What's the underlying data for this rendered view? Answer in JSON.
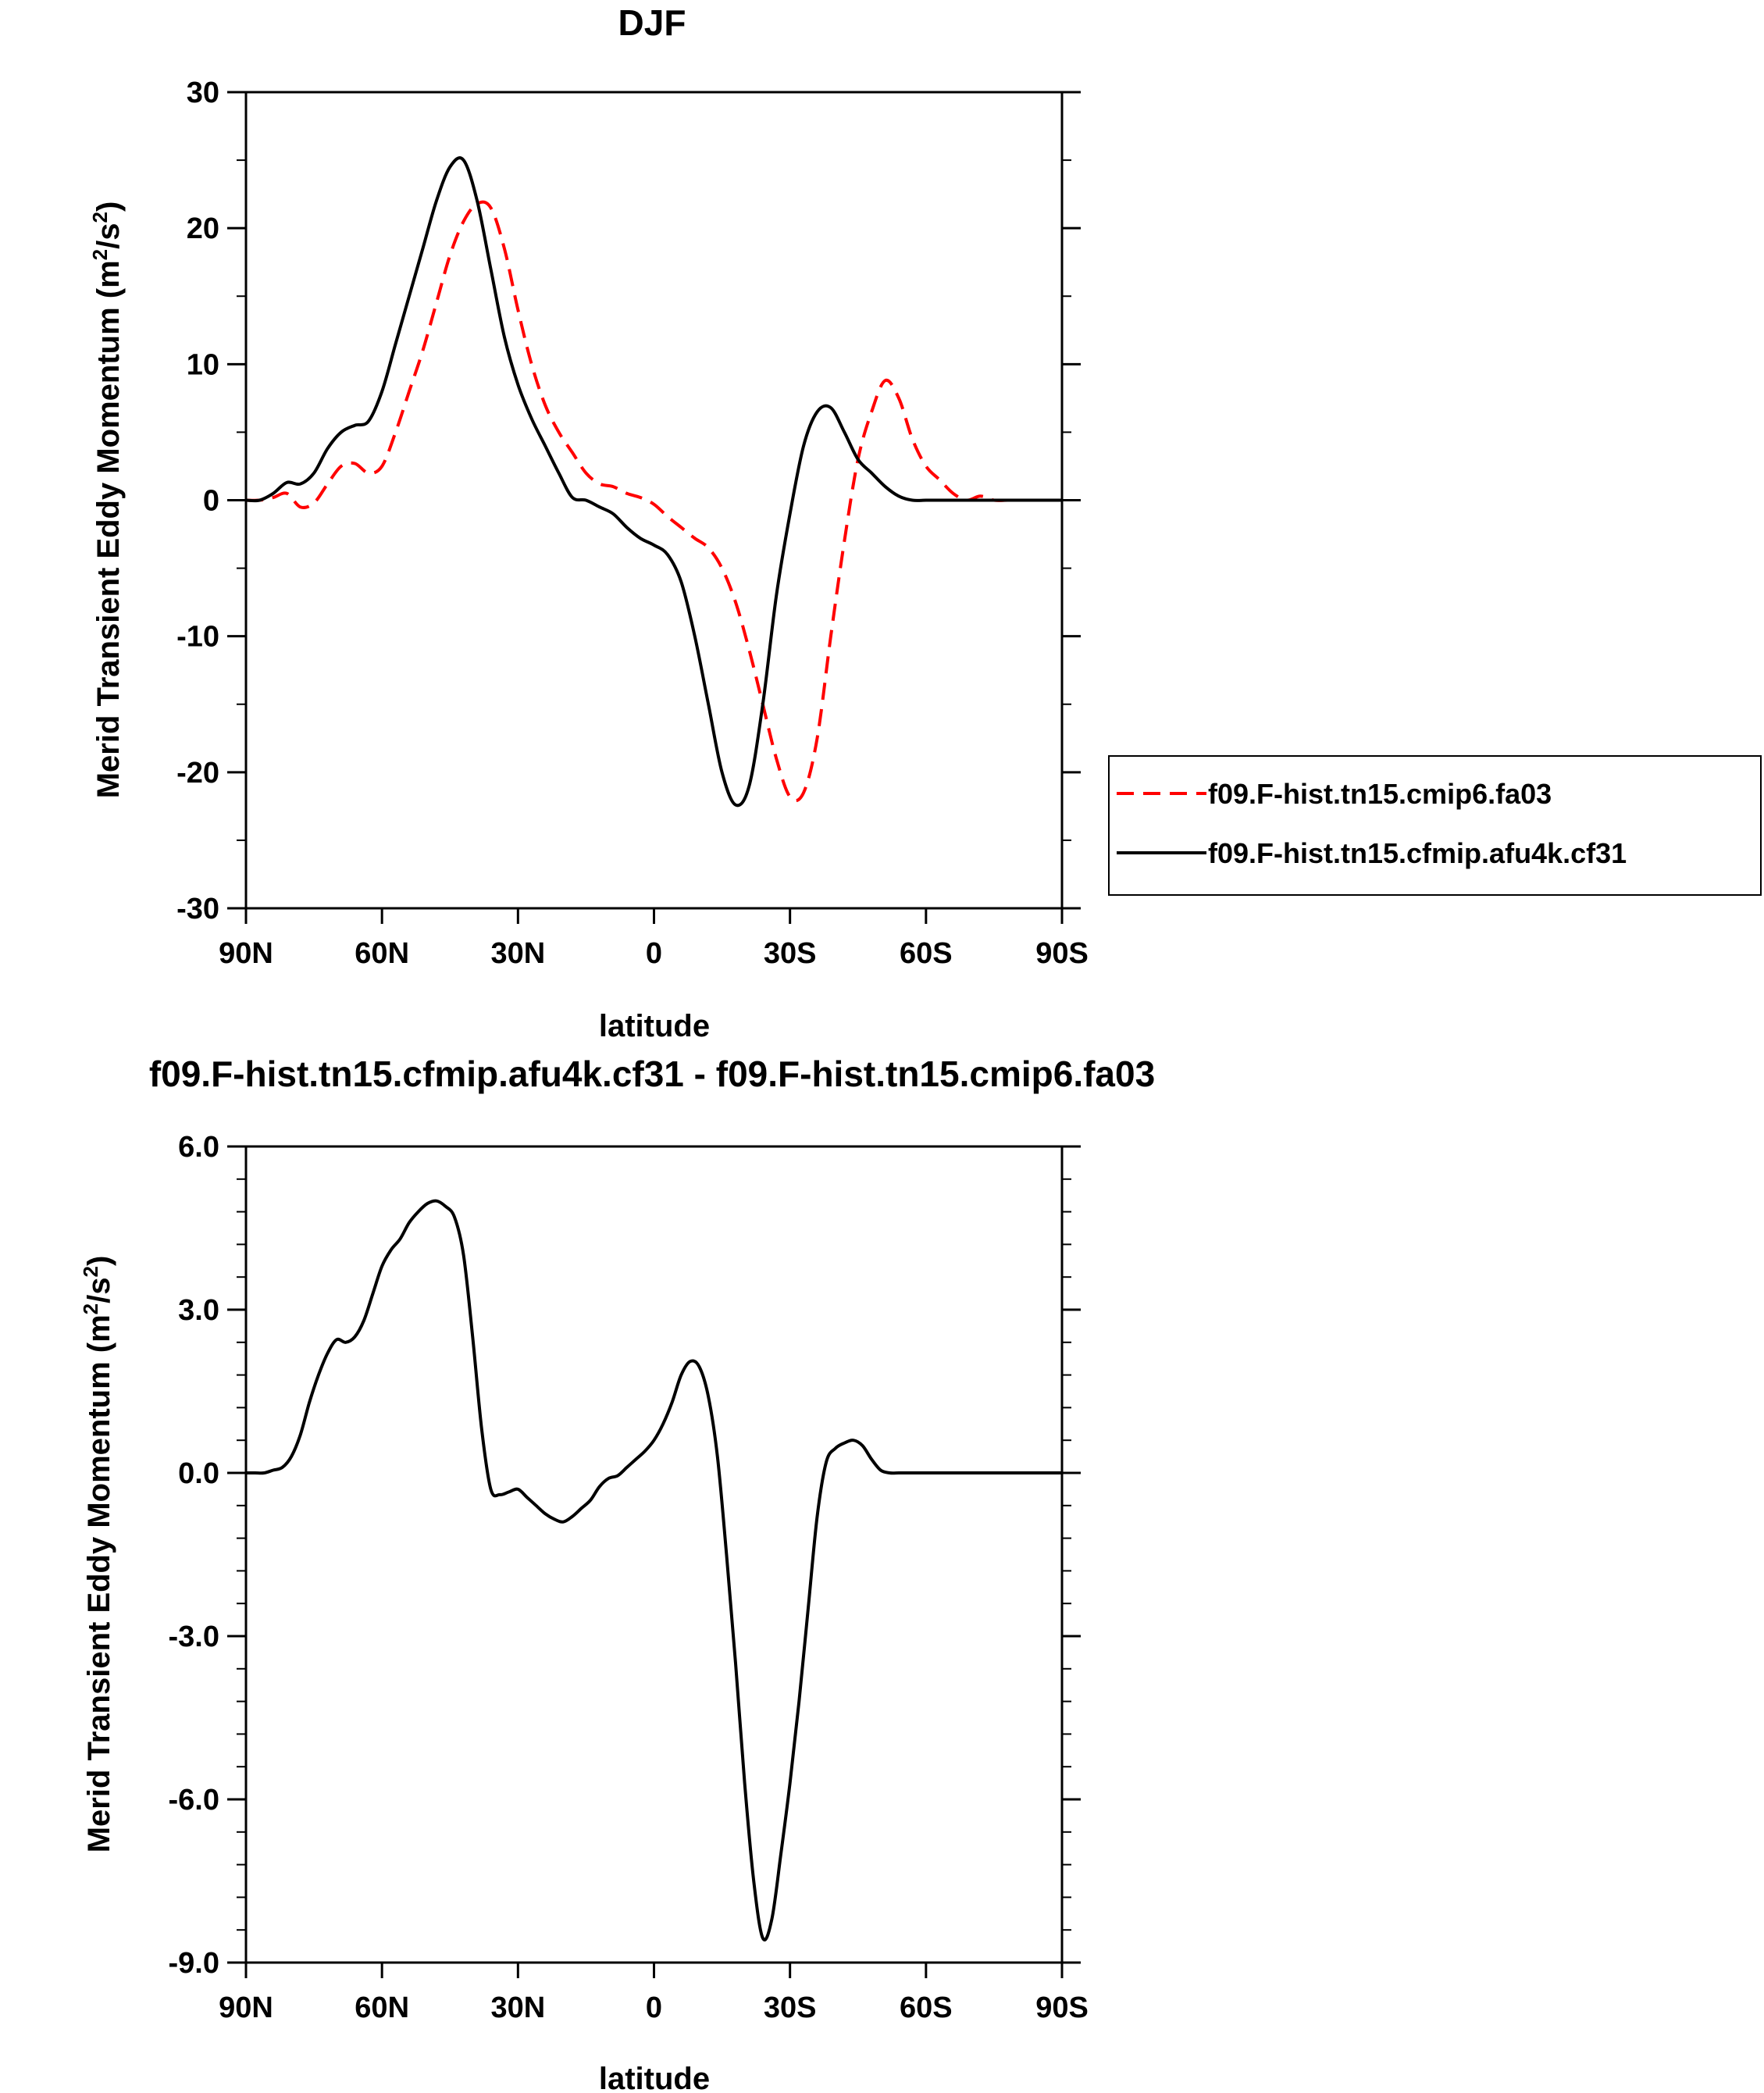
{
  "chart_data": [
    {
      "type": "line",
      "title": "DJF",
      "xlabel": "latitude",
      "ylabel_main": "Merid Transient Eddy Momentum (m",
      "ylabel_sup1": "2",
      "ylabel_mid": "/s",
      "ylabel_sup2": "2",
      "ylabel_end": ")",
      "xlim": [
        -90,
        90
      ],
      "ylim": [
        -30,
        30
      ],
      "xticks": [
        -90,
        -60,
        -30,
        0,
        30,
        60,
        90
      ],
      "xtick_labels": [
        "90N",
        "60N",
        "30N",
        "0",
        "30S",
        "60S",
        "90S"
      ],
      "yticks": [
        -30,
        -20,
        -10,
        0,
        10,
        20,
        30
      ],
      "ytick_labels": [
        "-30",
        "-20",
        "-10",
        "0",
        "10",
        "20",
        "30"
      ],
      "grid": false,
      "legend_position": "right",
      "series": [
        {
          "name": "f09.F-hist.tn15.cmip6.fa03",
          "color": "#ff0000",
          "dash": "dashed",
          "x": [
            -90,
            -87,
            -84,
            -81,
            -78,
            -75,
            -72,
            -69,
            -66,
            -63,
            -60,
            -57,
            -54,
            -51,
            -48,
            -45,
            -42,
            -39,
            -36,
            -33,
            -30,
            -27,
            -24,
            -21,
            -18,
            -15,
            -12,
            -9,
            -6,
            -3,
            0,
            3,
            6,
            9,
            12,
            15,
            18,
            21,
            24,
            27,
            30,
            33,
            36,
            39,
            42,
            45,
            48,
            51,
            54,
            57,
            60,
            63,
            66,
            69,
            72,
            75,
            78,
            81,
            84,
            87,
            90
          ],
          "values": [
            0,
            0,
            0.2,
            0.5,
            -0.5,
            -0.2,
            1.2,
            2.5,
            2.7,
            2,
            2.5,
            5,
            8,
            11,
            14.5,
            18,
            20.5,
            21.8,
            21.5,
            18.5,
            14,
            10,
            7,
            5,
            3.5,
            2,
            1.2,
            1,
            0.5,
            0.2,
            -0.3,
            -1.2,
            -2,
            -2.8,
            -3.5,
            -5,
            -7.5,
            -11,
            -15,
            -19,
            -21.8,
            -21.5,
            -17.5,
            -10,
            -3,
            3,
            6.5,
            8.8,
            7.5,
            4.5,
            2.5,
            1.5,
            0.5,
            0,
            0.3,
            0,
            0,
            0,
            0,
            0,
            0
          ]
        },
        {
          "name": "f09.F-hist.tn15.cfmip.afu4k.cf31",
          "color": "#000000",
          "dash": "solid",
          "x": [
            -90,
            -87,
            -84,
            -81,
            -78,
            -75,
            -72,
            -69,
            -66,
            -63,
            -60,
            -57,
            -54,
            -51,
            -48,
            -45,
            -42,
            -39,
            -36,
            -33,
            -30,
            -27,
            -24,
            -21,
            -18,
            -15,
            -12,
            -9,
            -6,
            -3,
            0,
            3,
            6,
            9,
            12,
            15,
            18,
            21,
            24,
            27,
            30,
            33,
            36,
            39,
            42,
            45,
            48,
            51,
            54,
            57,
            60,
            63,
            66,
            69,
            72,
            75,
            78,
            81,
            84,
            87,
            90
          ],
          "values": [
            0,
            0,
            0.5,
            1.3,
            1.2,
            2,
            3.8,
            5,
            5.5,
            5.8,
            8,
            11.5,
            15,
            18.5,
            22,
            24.5,
            25,
            22,
            17,
            12,
            8.5,
            6,
            4,
            2,
            0.2,
            0,
            -0.5,
            -1,
            -2,
            -2.8,
            -3.3,
            -4,
            -6,
            -10,
            -15,
            -20,
            -22.4,
            -21,
            -15,
            -7,
            -1,
            4,
            6.5,
            6.8,
            5,
            3,
            2,
            1,
            0.3,
            0,
            0,
            0,
            0,
            0,
            0,
            0,
            0,
            0,
            0,
            0,
            0
          ]
        }
      ]
    },
    {
      "type": "line",
      "title": "f09.F-hist.tn15.cfmip.afu4k.cf31 - f09.F-hist.tn15.cmip6.fa03",
      "xlabel": "latitude",
      "ylabel_main": "Merid Transient Eddy Momentum (m",
      "ylabel_sup1": "2",
      "ylabel_mid": "/s",
      "ylabel_sup2": "2",
      "ylabel_end": ")",
      "xlim": [
        -90,
        90
      ],
      "ylim": [
        -9,
        6
      ],
      "xticks": [
        -90,
        -60,
        -30,
        0,
        30,
        60,
        90
      ],
      "xtick_labels": [
        "90N",
        "60N",
        "30N",
        "0",
        "30S",
        "60S",
        "90S"
      ],
      "yticks": [
        -9,
        -6,
        -3,
        0,
        3,
        6
      ],
      "ytick_labels": [
        "-9.0",
        "-6.0",
        "-3.0",
        "0.0",
        "3.0",
        "6.0"
      ],
      "grid": false,
      "series": [
        {
          "color": "#000000",
          "dash": "solid",
          "x": [
            -90,
            -88,
            -86,
            -84,
            -82,
            -80,
            -78,
            -76,
            -74,
            -72,
            -70,
            -68,
            -66,
            -64,
            -62,
            -60,
            -58,
            -56,
            -54,
            -52,
            -50,
            -48,
            -46,
            -44,
            -42,
            -40,
            -38,
            -36,
            -34,
            -32,
            -30,
            -28,
            -26,
            -24,
            -22,
            -20,
            -18,
            -16,
            -14,
            -12,
            -10,
            -8,
            -6,
            -4,
            -2,
            0,
            2,
            4,
            6,
            8,
            10,
            12,
            14,
            16,
            18,
            20,
            22,
            24,
            26,
            28,
            30,
            32,
            34,
            36,
            38,
            40,
            42,
            44,
            46,
            48,
            50,
            52,
            54,
            56,
            58,
            60,
            62,
            64,
            66,
            68,
            70,
            72,
            74,
            76,
            78,
            80,
            82,
            84,
            86,
            88,
            90
          ],
          "values": [
            0,
            0,
            0,
            0.05,
            0.1,
            0.3,
            0.7,
            1.3,
            1.8,
            2.2,
            2.45,
            2.4,
            2.5,
            2.8,
            3.3,
            3.8,
            4.1,
            4.3,
            4.6,
            4.8,
            4.95,
            5,
            4.9,
            4.7,
            4,
            2.5,
            0.8,
            -0.3,
            -0.4,
            -0.35,
            -0.3,
            -0.45,
            -0.6,
            -0.75,
            -0.85,
            -0.9,
            -0.8,
            -0.65,
            -0.5,
            -0.25,
            -0.1,
            -0.05,
            0.1,
            0.25,
            0.4,
            0.6,
            0.9,
            1.3,
            1.8,
            2.05,
            1.95,
            1.4,
            0.3,
            -1.5,
            -3.5,
            -5.7,
            -7.5,
            -8.55,
            -8.2,
            -7,
            -5.7,
            -4.2,
            -2.5,
            -0.8,
            0.2,
            0.45,
            0.55,
            0.6,
            0.5,
            0.25,
            0.05,
            0,
            0,
            0,
            0,
            0,
            0,
            0,
            0,
            0,
            0,
            0,
            0,
            0,
            0,
            0,
            0,
            0,
            0,
            0,
            0
          ]
        }
      ]
    }
  ],
  "legend": {
    "items": [
      {
        "label": "f09.F-hist.tn15.cmip6.fa03",
        "color": "#ff0000",
        "dash": "dashed"
      },
      {
        "label": "f09.F-hist.tn15.cfmip.afu4k.cf31",
        "color": "#000000",
        "dash": "solid"
      }
    ]
  }
}
